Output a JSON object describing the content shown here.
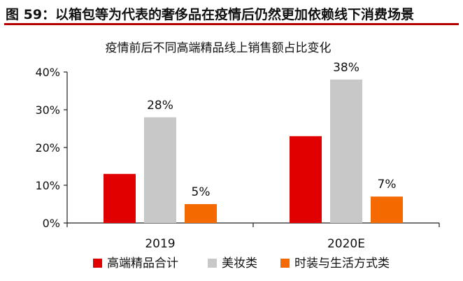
{
  "figure": {
    "caption": "图 59：以箱包等为代表的奢侈品在疫情后仍然更加依赖线下消费场景"
  },
  "chart_data": {
    "type": "bar",
    "title": "疫情前后不同高端精品线上销售额占比变化",
    "categories": [
      "2019",
      "2020E"
    ],
    "series": [
      {
        "name": "高端精品合计",
        "values": [
          13,
          23
        ],
        "color": "#e00000",
        "labels": [
          "",
          ""
        ]
      },
      {
        "name": "美妆类",
        "values": [
          28,
          38
        ],
        "color": "#c8c8c8",
        "labels": [
          "28%",
          "38%"
        ]
      },
      {
        "name": "时装与生活方式类",
        "values": [
          5,
          7
        ],
        "color": "#f46a00",
        "labels": [
          "5%",
          "7%"
        ]
      }
    ],
    "ylim": [
      0,
      40
    ],
    "yticks": [
      "0%",
      "10%",
      "20%",
      "30%",
      "40%"
    ],
    "ytick_values": [
      0,
      10,
      20,
      30,
      40
    ],
    "xlabel": "",
    "ylabel": "",
    "grid": false,
    "legend": "bottom"
  }
}
